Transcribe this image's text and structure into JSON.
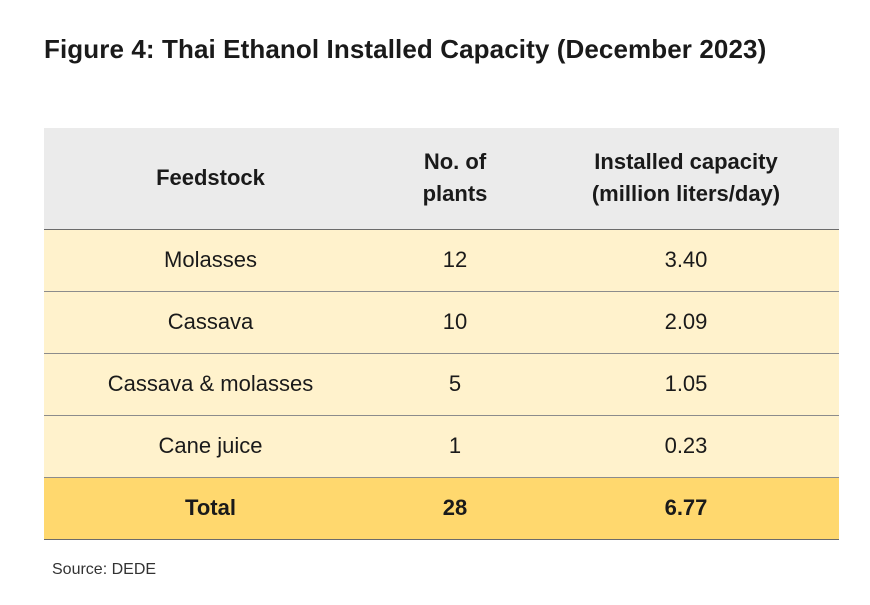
{
  "title": "Figure 4: Thai Ethanol Installed Capacity (December 2023)",
  "table": {
    "headers": {
      "feedstock": "Feedstock",
      "plants_line1": "No. of",
      "plants_line2": "plants",
      "capacity_line1": "Installed capacity",
      "capacity_line2": "(million liters/day)"
    },
    "rows": [
      {
        "feedstock": "Molasses",
        "plants": "12",
        "capacity": "3.40"
      },
      {
        "feedstock": "Cassava",
        "plants": "10",
        "capacity": "2.09"
      },
      {
        "feedstock": "Cassava & molasses",
        "plants": "5",
        "capacity": "1.05"
      },
      {
        "feedstock": "Cane juice",
        "plants": "1",
        "capacity": "0.23"
      }
    ],
    "total": {
      "feedstock": "Total",
      "plants": "28",
      "capacity": "6.77"
    }
  },
  "source": "Source: DEDE",
  "colors": {
    "header_bg": "#ebebeb",
    "row_bg": "#fff2cc",
    "total_bg": "#ffd86e"
  }
}
